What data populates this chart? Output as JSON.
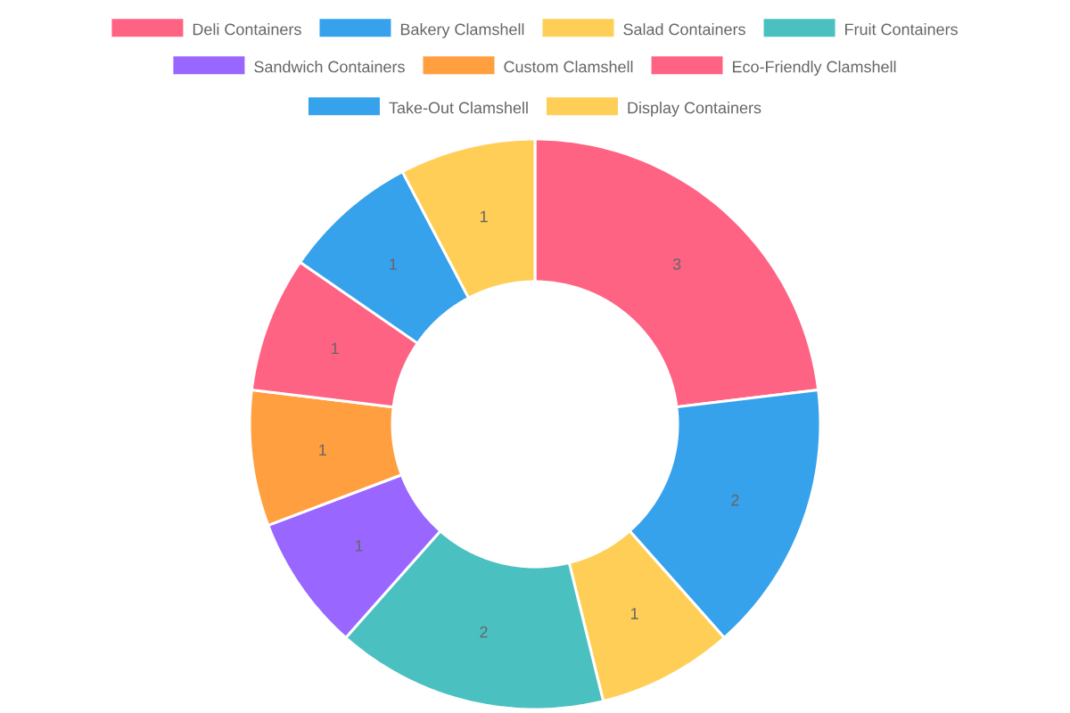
{
  "chart_data": {
    "type": "donut",
    "categories": [
      "Deli Containers",
      "Bakery Clamshell",
      "Salad Containers",
      "Fruit Containers",
      "Sandwich Containers",
      "Custom Clamshell",
      "Eco-Friendly Clamshell",
      "Take-Out Clamshell",
      "Display Containers"
    ],
    "values": [
      3,
      2,
      1,
      2,
      1,
      1,
      1,
      1,
      1
    ],
    "colors": [
      "#ff6384",
      "#36a2eb",
      "#ffce56",
      "#4bc0c0",
      "#9966ff",
      "#ff9f40",
      "#ff6384",
      "#36a2eb",
      "#ffce56"
    ],
    "legend": "top",
    "data_labels": true
  }
}
